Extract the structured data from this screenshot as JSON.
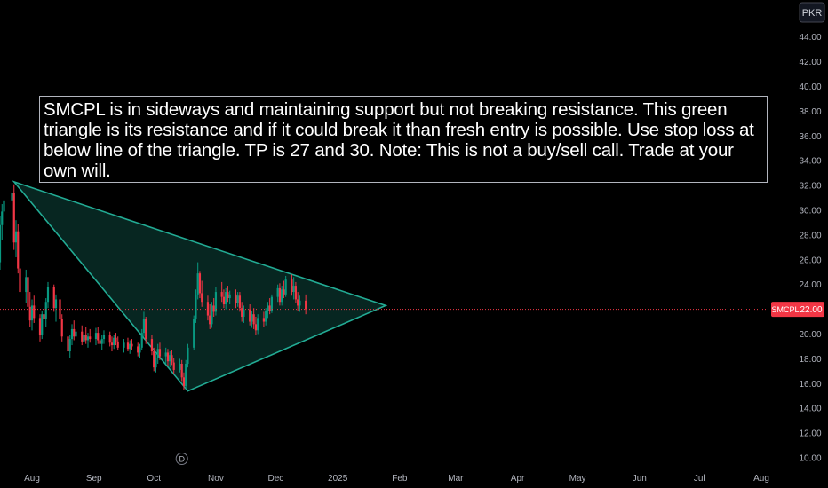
{
  "chart_data": {
    "type": "candlestick",
    "symbol": "SMCPL",
    "currency": "PKR",
    "last_price": 22.0,
    "last_price_label": "22.00",
    "y_axis": {
      "range": [
        9.5,
        46.0
      ],
      "ticks": [
        "10.00",
        "12.00",
        "14.00",
        "16.00",
        "18.00",
        "20.00",
        "22.00",
        "24.00",
        "26.00",
        "28.00",
        "30.00",
        "32.00",
        "34.00",
        "36.00",
        "38.00",
        "40.00",
        "42.00",
        "44.00"
      ],
      "scale": "linear"
    },
    "x_axis": {
      "ticks": [
        "Aug",
        "Sep",
        "Oct",
        "Nov",
        "Dec",
        "2025",
        "Feb",
        "Mar",
        "Apr",
        "May",
        "Jun",
        "Jul",
        "Aug"
      ]
    },
    "grid": false,
    "colors": {
      "up": "#089981",
      "down": "#f23645",
      "triangle_stroke": "#22ab94",
      "triangle_fill": "rgba(34,171,148,0.22)",
      "price_line": "#f23645",
      "axis_text": "#b2b5be"
    },
    "triangle": {
      "points": [
        {
          "date": "2024-07-23",
          "price": 32.3
        },
        {
          "date": "2024-10-18",
          "price": 15.4
        },
        {
          "date": "2025-01-25",
          "price": 22.3
        }
      ]
    },
    "event_marker": "D",
    "event_date": "2024-10-15",
    "annotation": "SMCPL is in sideways and maintaining support but not breaking resistance. This green triangle is its resistance and if it could break it than fresh entry is possible. Use stop loss at below line of the triangle.  TP is 27 and 30. Note: This is not a buy/sell call. Trade at your own will.",
    "candles": [
      {
        "t": "2024-07-15",
        "o": 25.0,
        "h": 26.2,
        "l": 23.8,
        "c": 25.8
      },
      {
        "t": "2024-07-16",
        "o": 25.8,
        "h": 29.5,
        "l": 25.2,
        "c": 28.8
      },
      {
        "t": "2024-07-17",
        "o": 28.8,
        "h": 30.5,
        "l": 27.6,
        "c": 29.9
      },
      {
        "t": "2024-07-18",
        "o": 29.9,
        "h": 31.2,
        "l": 28.5,
        "c": 30.8
      },
      {
        "t": "2024-07-22",
        "o": 30.8,
        "h": 32.3,
        "l": 29.6,
        "c": 31.4
      },
      {
        "t": "2024-07-23",
        "o": 31.4,
        "h": 32.1,
        "l": 26.8,
        "c": 27.4
      },
      {
        "t": "2024-07-24",
        "o": 27.4,
        "h": 29.2,
        "l": 26.2,
        "c": 28.3
      },
      {
        "t": "2024-07-25",
        "o": 28.3,
        "h": 28.9,
        "l": 24.9,
        "c": 25.3
      },
      {
        "t": "2024-07-26",
        "o": 25.3,
        "h": 26.1,
        "l": 22.8,
        "c": 23.4
      },
      {
        "t": "2024-07-29",
        "o": 23.4,
        "h": 25.2,
        "l": 22.5,
        "c": 24.6
      },
      {
        "t": "2024-07-30",
        "o": 24.6,
        "h": 24.9,
        "l": 21.8,
        "c": 22.2
      },
      {
        "t": "2024-07-31",
        "o": 22.2,
        "h": 23.4,
        "l": 20.6,
        "c": 21.1
      },
      {
        "t": "2024-08-01",
        "o": 21.1,
        "h": 22.8,
        "l": 20.3,
        "c": 22.3
      },
      {
        "t": "2024-08-02",
        "o": 22.3,
        "h": 23.1,
        "l": 20.9,
        "c": 21.3
      },
      {
        "t": "2024-08-05",
        "o": 21.3,
        "h": 21.6,
        "l": 19.4,
        "c": 19.9
      },
      {
        "t": "2024-08-06",
        "o": 19.9,
        "h": 21.9,
        "l": 19.6,
        "c": 21.6
      },
      {
        "t": "2024-08-07",
        "o": 21.6,
        "h": 22.4,
        "l": 20.8,
        "c": 21.2
      },
      {
        "t": "2024-08-08",
        "o": 21.2,
        "h": 22.9,
        "l": 20.6,
        "c": 22.6
      },
      {
        "t": "2024-08-09",
        "o": 22.6,
        "h": 24.2,
        "l": 22.1,
        "c": 23.8
      },
      {
        "t": "2024-08-12",
        "o": 23.8,
        "h": 24.0,
        "l": 21.8,
        "c": 22.1
      },
      {
        "t": "2024-08-13",
        "o": 22.1,
        "h": 23.2,
        "l": 21.0,
        "c": 22.8
      },
      {
        "t": "2024-08-15",
        "o": 22.8,
        "h": 23.3,
        "l": 20.9,
        "c": 21.2
      },
      {
        "t": "2024-08-16",
        "o": 21.2,
        "h": 21.6,
        "l": 19.4,
        "c": 19.8
      },
      {
        "t": "2024-08-19",
        "o": 19.8,
        "h": 20.4,
        "l": 18.2,
        "c": 18.6
      },
      {
        "t": "2024-08-20",
        "o": 18.6,
        "h": 19.9,
        "l": 18.1,
        "c": 19.6
      },
      {
        "t": "2024-08-21",
        "o": 19.6,
        "h": 20.8,
        "l": 19.1,
        "c": 20.4
      },
      {
        "t": "2024-08-22",
        "o": 20.4,
        "h": 21.1,
        "l": 19.5,
        "c": 19.8
      },
      {
        "t": "2024-08-23",
        "o": 19.8,
        "h": 20.6,
        "l": 19.0,
        "c": 20.2
      },
      {
        "t": "2024-08-26",
        "o": 20.2,
        "h": 20.7,
        "l": 19.1,
        "c": 19.4
      },
      {
        "t": "2024-08-27",
        "o": 19.4,
        "h": 20.3,
        "l": 18.8,
        "c": 19.9
      },
      {
        "t": "2024-08-28",
        "o": 19.9,
        "h": 20.6,
        "l": 19.2,
        "c": 19.5
      },
      {
        "t": "2024-08-29",
        "o": 19.5,
        "h": 20.1,
        "l": 18.9,
        "c": 19.8
      },
      {
        "t": "2024-08-30",
        "o": 19.8,
        "h": 20.4,
        "l": 19.3,
        "c": 19.6
      },
      {
        "t": "2024-09-02",
        "o": 19.6,
        "h": 20.5,
        "l": 19.1,
        "c": 20.1
      },
      {
        "t": "2024-09-03",
        "o": 20.1,
        "h": 20.6,
        "l": 19.2,
        "c": 19.5
      },
      {
        "t": "2024-09-04",
        "o": 19.5,
        "h": 20.1,
        "l": 18.9,
        "c": 19.2
      },
      {
        "t": "2024-09-05",
        "o": 19.2,
        "h": 19.9,
        "l": 18.7,
        "c": 19.6
      },
      {
        "t": "2024-09-06",
        "o": 19.6,
        "h": 20.3,
        "l": 19.2,
        "c": 19.9
      },
      {
        "t": "2024-09-09",
        "o": 19.9,
        "h": 20.2,
        "l": 19.0,
        "c": 19.3
      },
      {
        "t": "2024-09-10",
        "o": 19.3,
        "h": 19.8,
        "l": 18.6,
        "c": 19.1
      },
      {
        "t": "2024-09-11",
        "o": 19.1,
        "h": 19.9,
        "l": 18.8,
        "c": 19.7
      },
      {
        "t": "2024-09-12",
        "o": 19.7,
        "h": 20.1,
        "l": 19.1,
        "c": 19.4
      },
      {
        "t": "2024-09-13",
        "o": 19.4,
        "h": 19.8,
        "l": 18.7,
        "c": 18.9
      },
      {
        "t": "2024-09-16",
        "o": 18.9,
        "h": 19.6,
        "l": 18.5,
        "c": 19.3
      },
      {
        "t": "2024-09-18",
        "o": 19.3,
        "h": 19.7,
        "l": 18.6,
        "c": 18.8
      },
      {
        "t": "2024-09-19",
        "o": 18.8,
        "h": 19.5,
        "l": 18.4,
        "c": 19.2
      },
      {
        "t": "2024-09-20",
        "o": 19.2,
        "h": 19.6,
        "l": 18.7,
        "c": 19.0
      },
      {
        "t": "2024-09-23",
        "o": 19.0,
        "h": 19.3,
        "l": 18.2,
        "c": 18.5
      },
      {
        "t": "2024-09-24",
        "o": 18.5,
        "h": 19.2,
        "l": 18.1,
        "c": 18.9
      },
      {
        "t": "2024-09-25",
        "o": 18.9,
        "h": 20.4,
        "l": 18.7,
        "c": 20.1
      },
      {
        "t": "2024-09-26",
        "o": 20.1,
        "h": 21.8,
        "l": 19.8,
        "c": 21.2
      },
      {
        "t": "2024-09-27",
        "o": 21.2,
        "h": 21.4,
        "l": 19.2,
        "c": 19.6
      },
      {
        "t": "2024-09-30",
        "o": 19.6,
        "h": 19.9,
        "l": 18.3,
        "c": 18.6
      },
      {
        "t": "2024-10-01",
        "o": 18.6,
        "h": 18.9,
        "l": 17.0,
        "c": 17.3
      },
      {
        "t": "2024-10-02",
        "o": 17.3,
        "h": 18.4,
        "l": 16.9,
        "c": 18.1
      },
      {
        "t": "2024-10-03",
        "o": 18.1,
        "h": 19.2,
        "l": 17.6,
        "c": 18.8
      },
      {
        "t": "2024-10-04",
        "o": 18.8,
        "h": 19.3,
        "l": 17.9,
        "c": 18.2
      },
      {
        "t": "2024-10-07",
        "o": 18.2,
        "h": 18.9,
        "l": 17.6,
        "c": 18.5
      },
      {
        "t": "2024-10-08",
        "o": 18.5,
        "h": 18.8,
        "l": 17.4,
        "c": 17.8
      },
      {
        "t": "2024-10-09",
        "o": 17.8,
        "h": 18.6,
        "l": 17.3,
        "c": 18.3
      },
      {
        "t": "2024-10-10",
        "o": 18.3,
        "h": 18.7,
        "l": 17.5,
        "c": 17.7
      },
      {
        "t": "2024-10-11",
        "o": 17.7,
        "h": 18.1,
        "l": 16.8,
        "c": 17.1
      },
      {
        "t": "2024-10-14",
        "o": 17.1,
        "h": 18.0,
        "l": 16.9,
        "c": 17.6
      },
      {
        "t": "2024-10-15",
        "o": 17.6,
        "h": 17.9,
        "l": 16.2,
        "c": 16.5
      },
      {
        "t": "2024-10-16",
        "o": 16.5,
        "h": 16.9,
        "l": 15.5,
        "c": 15.8
      },
      {
        "t": "2024-10-17",
        "o": 15.8,
        "h": 17.9,
        "l": 15.6,
        "c": 17.6
      },
      {
        "t": "2024-10-18",
        "o": 17.6,
        "h": 19.2,
        "l": 17.3,
        "c": 18.9
      },
      {
        "t": "2024-10-21",
        "o": 18.9,
        "h": 21.5,
        "l": 18.7,
        "c": 21.2
      },
      {
        "t": "2024-10-22",
        "o": 21.2,
        "h": 23.6,
        "l": 20.9,
        "c": 23.2
      },
      {
        "t": "2024-10-23",
        "o": 23.2,
        "h": 25.8,
        "l": 22.8,
        "c": 24.9
      },
      {
        "t": "2024-10-24",
        "o": 24.9,
        "h": 25.1,
        "l": 22.9,
        "c": 23.3
      },
      {
        "t": "2024-10-25",
        "o": 23.3,
        "h": 24.3,
        "l": 22.2,
        "c": 22.6
      },
      {
        "t": "2024-10-28",
        "o": 22.6,
        "h": 23.1,
        "l": 21.1,
        "c": 21.5
      },
      {
        "t": "2024-10-29",
        "o": 21.5,
        "h": 22.4,
        "l": 20.4,
        "c": 20.8
      },
      {
        "t": "2024-10-30",
        "o": 20.8,
        "h": 22.6,
        "l": 20.5,
        "c": 22.3
      },
      {
        "t": "2024-10-31",
        "o": 22.3,
        "h": 22.9,
        "l": 21.4,
        "c": 21.8
      },
      {
        "t": "2024-11-01",
        "o": 21.8,
        "h": 23.8,
        "l": 21.5,
        "c": 23.4
      },
      {
        "t": "2024-11-04",
        "o": 23.4,
        "h": 24.2,
        "l": 22.6,
        "c": 23.0
      },
      {
        "t": "2024-11-05",
        "o": 23.0,
        "h": 23.6,
        "l": 22.1,
        "c": 22.4
      },
      {
        "t": "2024-11-06",
        "o": 22.4,
        "h": 23.7,
        "l": 22.0,
        "c": 23.4
      },
      {
        "t": "2024-11-07",
        "o": 23.4,
        "h": 23.9,
        "l": 22.6,
        "c": 22.9
      },
      {
        "t": "2024-11-08",
        "o": 22.9,
        "h": 23.5,
        "l": 22.4,
        "c": 23.2
      },
      {
        "t": "2024-11-11",
        "o": 23.2,
        "h": 23.6,
        "l": 22.1,
        "c": 22.5
      },
      {
        "t": "2024-11-12",
        "o": 22.5,
        "h": 23.4,
        "l": 22.2,
        "c": 23.1
      },
      {
        "t": "2024-11-13",
        "o": 23.1,
        "h": 23.4,
        "l": 21.8,
        "c": 22.1
      },
      {
        "t": "2024-11-14",
        "o": 22.1,
        "h": 22.6,
        "l": 21.0,
        "c": 21.4
      },
      {
        "t": "2024-11-15",
        "o": 21.4,
        "h": 22.3,
        "l": 20.9,
        "c": 22.0
      },
      {
        "t": "2024-11-18",
        "o": 22.0,
        "h": 22.4,
        "l": 20.7,
        "c": 21.0
      },
      {
        "t": "2024-11-19",
        "o": 21.0,
        "h": 21.9,
        "l": 20.5,
        "c": 21.6
      },
      {
        "t": "2024-11-20",
        "o": 21.6,
        "h": 22.1,
        "l": 20.4,
        "c": 20.8
      },
      {
        "t": "2024-11-21",
        "o": 20.8,
        "h": 21.4,
        "l": 19.9,
        "c": 20.3
      },
      {
        "t": "2024-11-22",
        "o": 20.3,
        "h": 21.6,
        "l": 20.0,
        "c": 21.3
      },
      {
        "t": "2024-11-25",
        "o": 21.3,
        "h": 21.8,
        "l": 20.6,
        "c": 21.0
      },
      {
        "t": "2024-11-26",
        "o": 21.0,
        "h": 22.1,
        "l": 20.7,
        "c": 21.9
      },
      {
        "t": "2024-11-27",
        "o": 21.9,
        "h": 22.6,
        "l": 21.3,
        "c": 22.3
      },
      {
        "t": "2024-11-28",
        "o": 22.3,
        "h": 22.9,
        "l": 21.6,
        "c": 21.9
      },
      {
        "t": "2024-11-29",
        "o": 21.9,
        "h": 23.2,
        "l": 21.7,
        "c": 23.0
      },
      {
        "t": "2024-12-02",
        "o": 23.0,
        "h": 24.0,
        "l": 22.6,
        "c": 23.7
      },
      {
        "t": "2024-12-03",
        "o": 23.7,
        "h": 24.1,
        "l": 22.3,
        "c": 22.6
      },
      {
        "t": "2024-12-04",
        "o": 22.6,
        "h": 23.9,
        "l": 22.3,
        "c": 23.6
      },
      {
        "t": "2024-12-05",
        "o": 23.6,
        "h": 24.3,
        "l": 22.9,
        "c": 23.2
      },
      {
        "t": "2024-12-06",
        "o": 23.2,
        "h": 24.7,
        "l": 23.0,
        "c": 24.4
      },
      {
        "t": "2024-12-09",
        "o": 24.4,
        "h": 24.8,
        "l": 23.1,
        "c": 23.4
      },
      {
        "t": "2024-12-10",
        "o": 23.4,
        "h": 24.6,
        "l": 22.8,
        "c": 23.9
      },
      {
        "t": "2024-12-11",
        "o": 23.9,
        "h": 24.2,
        "l": 22.5,
        "c": 22.8
      },
      {
        "t": "2024-12-12",
        "o": 22.8,
        "h": 23.4,
        "l": 21.9,
        "c": 22.3
      },
      {
        "t": "2024-12-13",
        "o": 22.3,
        "h": 23.1,
        "l": 21.8,
        "c": 22.7
      },
      {
        "t": "2024-12-16",
        "o": 22.7,
        "h": 23.2,
        "l": 21.6,
        "c": 22.0
      }
    ]
  }
}
